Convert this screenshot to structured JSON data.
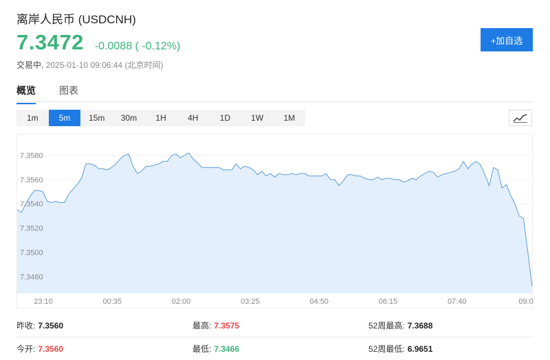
{
  "header": {
    "title": "离岸人民币 (USDCNH)",
    "price": "7.3472",
    "change": "-0.0088",
    "change_pct": "( -0.12%)",
    "status": "交易中,",
    "timestamp": "2025-01-10 09:06:44",
    "timezone": "(北京时间)",
    "add_watchlist": "+加自选"
  },
  "tabs": [
    {
      "label": "概览",
      "active": true
    },
    {
      "label": "图表",
      "active": false
    }
  ],
  "periods": [
    "1m",
    "5m",
    "15m",
    "30m",
    "1H",
    "4H",
    "1D",
    "1W",
    "1M"
  ],
  "active_period": "5m",
  "chart_type_icon": "line-chart-icon",
  "colors": {
    "up": "#e64545",
    "down": "#3cb37a",
    "accent": "#1e7be4",
    "line": "#5b9bd5",
    "fill": "#e3effc"
  },
  "chart_data": {
    "type": "area",
    "x_ticks": [
      "23:10",
      "00:35",
      "02:00",
      "03:25",
      "04:50",
      "06:15",
      "07:40",
      "09:0"
    ],
    "y_ticks": [
      "7.3580",
      "7.3560",
      "7.3540",
      "7.3520",
      "7.3500",
      "7.3480"
    ],
    "ylim": [
      7.3466,
      7.3595
    ],
    "values": [
      7.3535,
      7.3533,
      7.354,
      7.3546,
      7.3551,
      7.3551,
      7.355,
      7.3542,
      7.3541,
      7.3542,
      7.3541,
      7.3541,
      7.3548,
      7.3552,
      7.3556,
      7.3561,
      7.3573,
      7.3573,
      7.3572,
      7.3569,
      7.3569,
      7.3568,
      7.357,
      7.3573,
      7.3577,
      7.358,
      7.3581,
      7.3571,
      7.3565,
      7.3567,
      7.3571,
      7.3571,
      7.3572,
      7.3573,
      7.3575,
      7.3575,
      7.358,
      7.3581,
      7.3578,
      7.358,
      7.3582,
      7.3577,
      7.3574,
      7.357,
      7.357,
      7.357,
      7.357,
      7.357,
      7.3568,
      7.3568,
      7.3568,
      7.3573,
      7.3569,
      7.3571,
      7.357,
      7.3568,
      7.3564,
      7.3567,
      7.3563,
      7.3565,
      7.3562,
      7.3565,
      7.3564,
      7.3564,
      7.3565,
      7.3564,
      7.3565,
      7.3565,
      7.3563,
      7.3563,
      7.3563,
      7.3563,
      7.3565,
      7.356,
      7.356,
      7.3555,
      7.3559,
      7.3564,
      7.3564,
      7.3563,
      7.3563,
      7.3561,
      7.356,
      7.356,
      7.3562,
      7.356,
      7.3561,
      7.3561,
      7.356,
      7.356,
      7.3558,
      7.3559,
      7.3561,
      7.356,
      7.3563,
      7.3565,
      7.3567,
      7.3566,
      7.3562,
      7.3564,
      7.3565,
      7.3566,
      7.3567,
      7.3569,
      7.3575,
      7.3569,
      7.3573,
      7.3575,
      7.3572,
      7.3564,
      7.3555,
      7.357,
      7.3568,
      7.3553,
      7.3556,
      7.3547,
      7.354,
      7.353,
      7.3528,
      7.35,
      7.3472
    ]
  },
  "stats": {
    "prev_close_label": "昨收:",
    "prev_close": "7.3560",
    "high_label": "最高:",
    "high": "7.3575",
    "week52_high_label": "52周最高:",
    "week52_high": "7.3688",
    "open_label": "今开:",
    "open": "7.3560",
    "low_label": "最低:",
    "low": "7.3466",
    "week52_low_label": "52周最低:",
    "week52_low": "6.9651"
  }
}
